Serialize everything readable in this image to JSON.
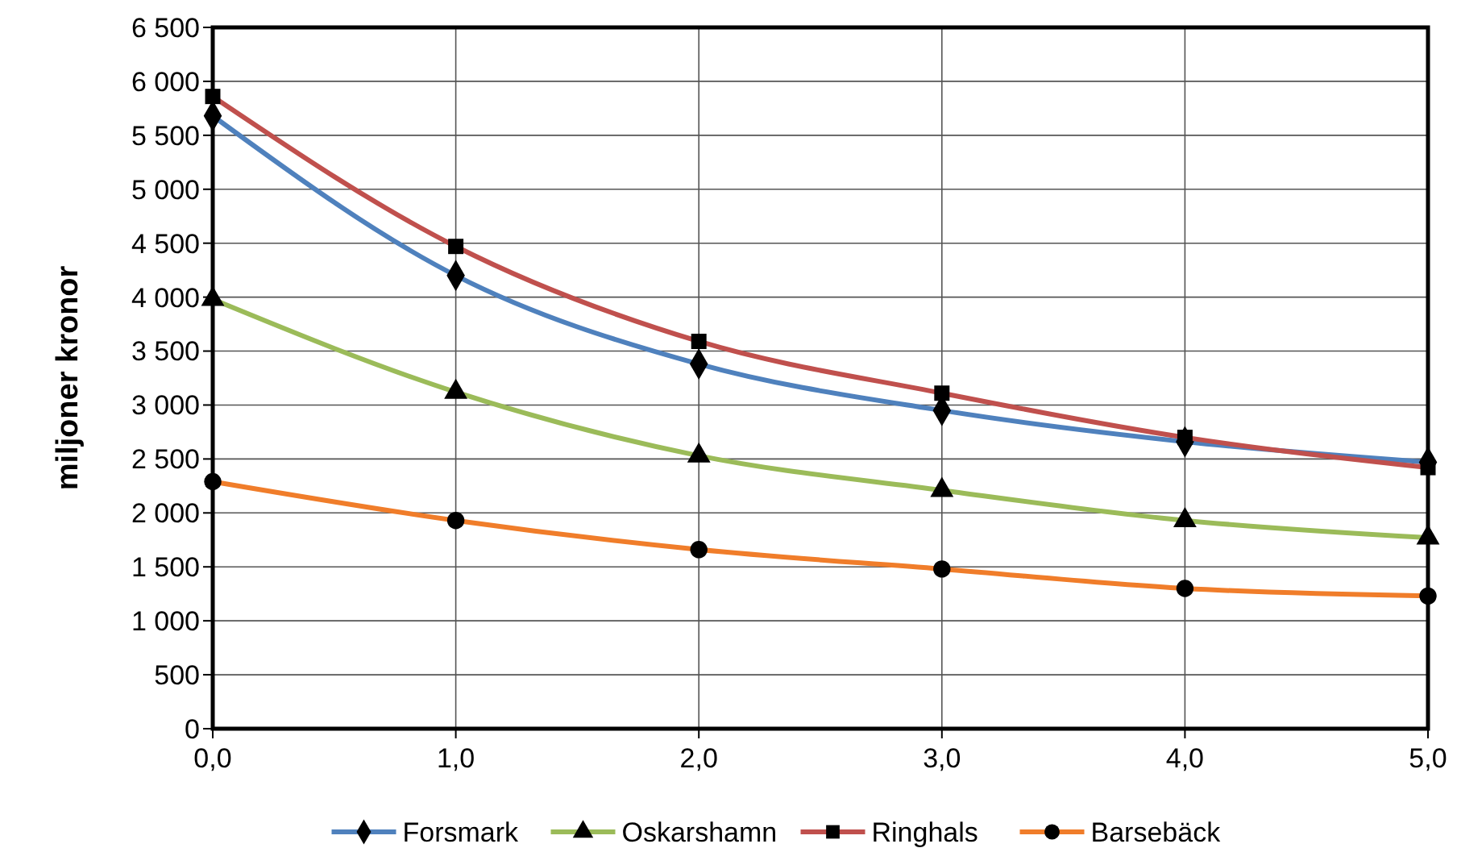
{
  "chart_data": {
    "type": "line",
    "ylabel": "miljoner kronor",
    "x": [
      0,
      1,
      2,
      3,
      4,
      5
    ],
    "xlim": [
      0,
      5
    ],
    "xticks": [
      {
        "value": 0,
        "label": "0,0"
      },
      {
        "value": 1,
        "label": "1,0"
      },
      {
        "value": 2,
        "label": "2,0"
      },
      {
        "value": 3,
        "label": "3,0"
      },
      {
        "value": 4,
        "label": "4,0"
      },
      {
        "value": 5,
        "label": "5,0"
      }
    ],
    "ylim": [
      0,
      6500
    ],
    "yticks": [
      0,
      500,
      {
        "value": 1000,
        "label": "1 000"
      },
      {
        "value": 1500,
        "label": "1 500"
      },
      {
        "value": 2000,
        "label": "2 000"
      },
      {
        "value": 2500,
        "label": "2 500"
      },
      {
        "value": 3000,
        "label": "3 000"
      },
      {
        "value": 3500,
        "label": "3 500"
      },
      {
        "value": 4000,
        "label": "4 000"
      },
      {
        "value": 4500,
        "label": "4 500"
      },
      {
        "value": 5000,
        "label": "5 000"
      },
      {
        "value": 5500,
        "label": "5 500"
      },
      {
        "value": 6000,
        "label": "6 000"
      },
      {
        "value": 6500,
        "label": "6 500"
      }
    ],
    "grid": true,
    "legend": "bottom",
    "series": [
      {
        "name": "Forsmark",
        "color": "#4f81bd",
        "marker": "diamond",
        "values": [
          5680,
          4200,
          3380,
          2950,
          2660,
          2470
        ]
      },
      {
        "name": "Oskarshamn",
        "color": "#9bbb59",
        "marker": "triangle",
        "values": [
          3980,
          3120,
          2530,
          2210,
          1930,
          1770
        ]
      },
      {
        "name": "Ringhals",
        "color": "#c0504d",
        "marker": "square",
        "values": [
          5860,
          4470,
          3590,
          3110,
          2700,
          2420
        ]
      },
      {
        "name": "Barsebäck",
        "color": "#f07d2a",
        "marker": "circle",
        "values": [
          2290,
          1930,
          1660,
          1480,
          1300,
          1230
        ]
      }
    ]
  }
}
